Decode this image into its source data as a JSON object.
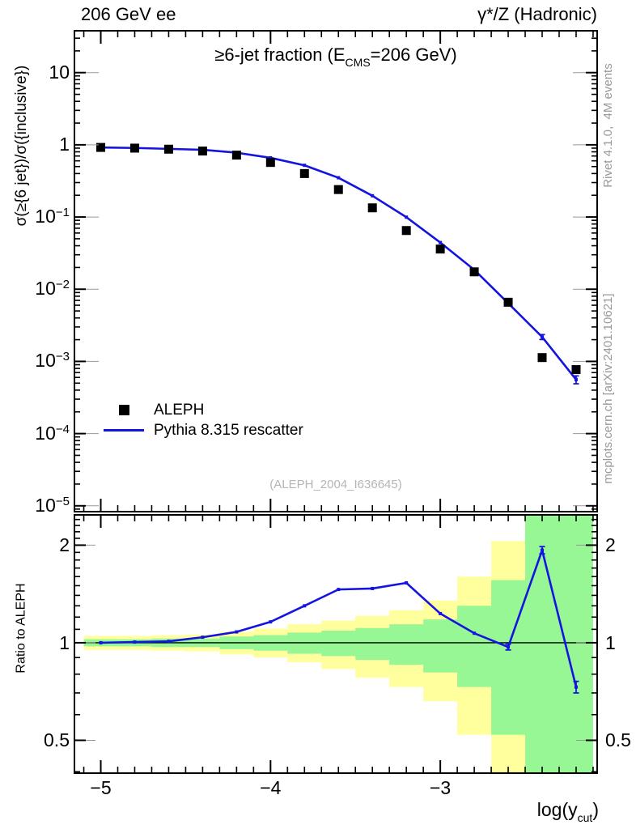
{
  "header": {
    "left": "206 GeV ee",
    "right": "γ*/Z (Hadronic)"
  },
  "side_notes": {
    "rivet": "Rivet 4.1.0,  4M events",
    "mcplots": "mcplots.cern.ch [arXiv:2401.10621]"
  },
  "watermark": "(ALEPH_2004_I636645)",
  "legend": {
    "items": [
      {
        "label": "ALEPH",
        "marker": "square",
        "color": "#000000"
      },
      {
        "label": "Pythia 8.315 rescatter",
        "marker": "line",
        "color": "#1414e0"
      }
    ]
  },
  "chart_data": {
    "type": "line",
    "title": {
      "prefix": "≥6-jet fraction (E",
      "sub": "CMS",
      "suffix": "=206 GeV)"
    },
    "xlabel": {
      "prefix": "log(y",
      "sub": "cut",
      "suffix": ")"
    },
    "ylabel_main": "σ(≥{6 jet})/σ({inclusive})",
    "ylabel_ratio": "Ratio to ALEPH",
    "x_range": [
      -5.155,
      -2.076
    ],
    "y_range_main": [
      8.3e-06,
      38
    ],
    "y_range_ratio": [
      0.396,
      2.48
    ],
    "y_scale": "log",
    "grid": false,
    "legend_position": "inside-left-lower",
    "x_major_ticks": [
      -5,
      -4,
      -3
    ],
    "x_tick_labels": [
      "−5",
      "−4",
      "−3"
    ],
    "x_minor_step": 0.1,
    "y_major_ticks_main": [
      10,
      1,
      0.1,
      0.01,
      0.001,
      0.0001,
      1e-05
    ],
    "y_tick_labels_main": [
      "10",
      "1",
      "10^−1",
      "10^−2",
      "10^−3",
      "10^−4",
      "10^−5"
    ],
    "y_major_ticks_ratio": [
      2,
      1,
      0.5
    ],
    "y_tick_labels_ratio": [
      "2",
      "1",
      "0.5"
    ],
    "bin_half_width": 0.1,
    "x": [
      -5.0,
      -4.8,
      -4.6,
      -4.4,
      -4.2,
      -4.0,
      -3.8,
      -3.6,
      -3.4,
      -3.2,
      -3.0,
      -2.8,
      -2.6,
      -2.4,
      -2.2
    ],
    "series": [
      {
        "name": "ALEPH",
        "style": "points",
        "color": "#000000",
        "values": [
          0.92,
          0.9,
          0.87,
          0.82,
          0.72,
          0.57,
          0.4,
          0.24,
          0.134,
          0.065,
          0.036,
          0.0174,
          0.0066,
          0.00113,
          0.00077
        ]
      },
      {
        "name": "Pythia 8.315 rescatter",
        "style": "line",
        "color": "#1414e0",
        "values": [
          0.92,
          0.905,
          0.879,
          0.853,
          0.778,
          0.661,
          0.52,
          0.35,
          0.197,
          0.0995,
          0.0443,
          0.0186,
          0.0064,
          0.00218,
          0.00056
        ],
        "errors": [
          0,
          0,
          0,
          0,
          0,
          0,
          0,
          0,
          0,
          0,
          0,
          0,
          0,
          0.00017,
          7e-05
        ]
      }
    ],
    "ratio": {
      "name": "Pythia / ALEPH",
      "color": "#1414e0",
      "values": [
        1.0,
        1.005,
        1.01,
        1.04,
        1.08,
        1.16,
        1.3,
        1.46,
        1.47,
        1.53,
        1.23,
        1.07,
        0.97,
        1.93,
        0.73
      ],
      "errors": [
        0,
        0,
        0,
        0,
        0,
        0,
        0,
        0,
        0,
        0,
        0,
        0,
        0.02,
        0.05,
        0.03
      ],
      "reference_line": 1.0
    },
    "bands": {
      "yellow": {
        "color": "#ffff9e",
        "hi": [
          1.05,
          1.05,
          1.055,
          1.06,
          1.08,
          1.105,
          1.14,
          1.17,
          1.21,
          1.26,
          1.35,
          1.6,
          2.06,
          2.55,
          2.55
        ],
        "lo": [
          0.95,
          0.95,
          0.945,
          0.94,
          0.92,
          0.9,
          0.87,
          0.83,
          0.78,
          0.73,
          0.66,
          0.52,
          0.36,
          0.36,
          0.36
        ]
      },
      "green": {
        "color": "#97f795",
        "hi": [
          1.025,
          1.025,
          1.03,
          1.03,
          1.045,
          1.055,
          1.075,
          1.09,
          1.11,
          1.14,
          1.18,
          1.3,
          1.56,
          2.55,
          2.55
        ],
        "lo": [
          0.975,
          0.975,
          0.97,
          0.97,
          0.955,
          0.945,
          0.925,
          0.91,
          0.885,
          0.855,
          0.81,
          0.73,
          0.52,
          0.36,
          0.36
        ]
      }
    }
  }
}
